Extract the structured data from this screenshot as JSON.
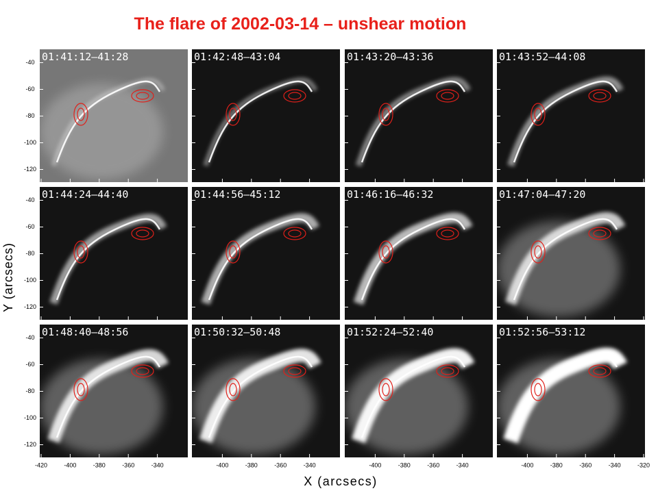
{
  "title": "The flare of 2002-03-14 – unshear motion",
  "panels": [
    "01:41:12–41:28",
    "01:42:48–43:04",
    "01:43:20–43:36",
    "01:43:52–44:08",
    "01:44:24–44:40",
    "01:44:56–45:12",
    "01:46:16–46:32",
    "01:47:04–47:20",
    "01:48:40–48:56",
    "01:50:32–50:48",
    "01:52:24–52:40",
    "01:52:56–53:12"
  ],
  "y_ticks": [
    -40,
    -60,
    -80,
    -100,
    -120
  ],
  "x_ticks": [
    [
      -420,
      -400,
      -380,
      -360,
      -340
    ],
    [
      -400,
      -380,
      -360,
      -340
    ],
    [
      -400,
      -380,
      -360,
      -340
    ],
    [
      -400,
      -380,
      -360,
      -340,
      -320
    ]
  ],
  "y_label": "Y (arcsecs)",
  "x_label": "X (arcsecs)"
}
